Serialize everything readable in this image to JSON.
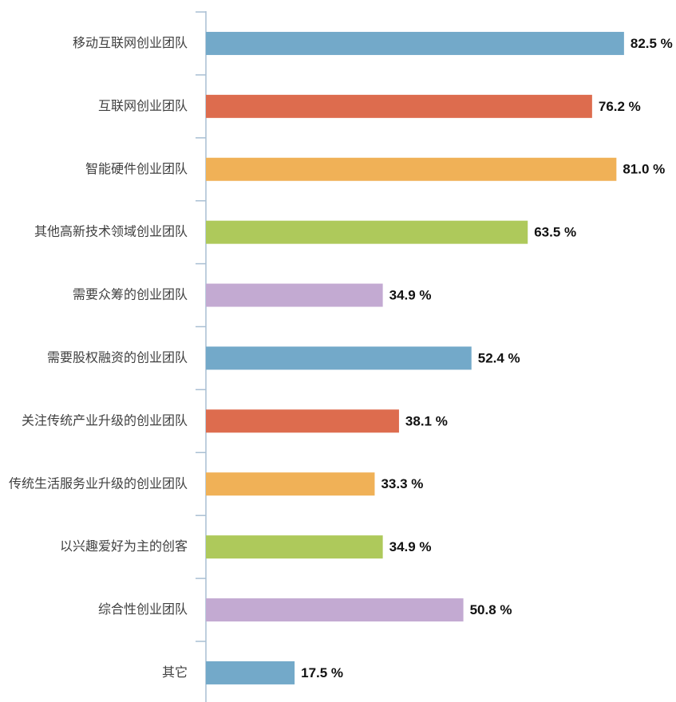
{
  "chart_data": {
    "type": "barh",
    "categories": [
      "移动互联网创业团队",
      "互联网创业团队",
      "智能硬件创业团队",
      "其他高新技术领域创业团队",
      "需要众筹的创业团队",
      "需要股权融资的创业团队",
      "关注传统产业升级的创业团队",
      "传统生活服务业升级的创业团队",
      "以兴趣爱好为主的创客",
      "综合性创业团队",
      "其它"
    ],
    "values": [
      82.5,
      76.2,
      81.0,
      63.5,
      34.9,
      52.4,
      38.1,
      33.3,
      34.9,
      50.8,
      17.5
    ],
    "value_labels": [
      "82.5 %",
      "76.2 %",
      "81.0 %",
      "63.5 %",
      "34.9 %",
      "52.4 %",
      "38.1 %",
      "33.3 %",
      "34.9 %",
      "50.8 %",
      "17.5 %"
    ],
    "colors": [
      "#73a9c9",
      "#dd6c4e",
      "#f0b157",
      "#aec95b",
      "#c3aad2",
      "#73a9c9",
      "#dd6c4e",
      "#f0b157",
      "#aec95b",
      "#c3aad2",
      "#73a9c9"
    ],
    "xlim": [
      0,
      90
    ]
  }
}
